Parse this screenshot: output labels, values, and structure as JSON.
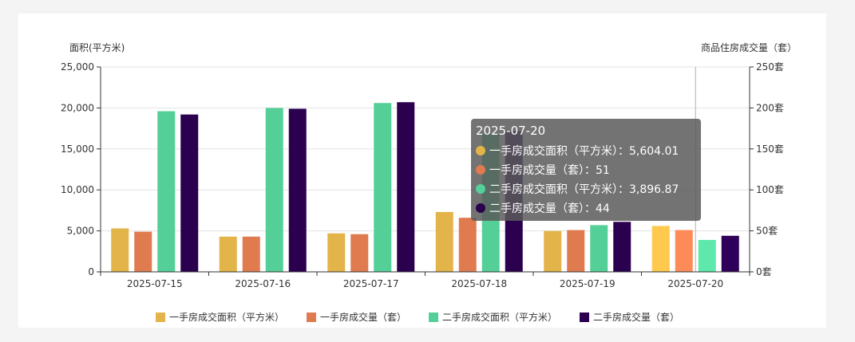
{
  "chart_data": {
    "type": "bar",
    "categories": [
      "2025-07-15",
      "2025-07-16",
      "2025-07-17",
      "2025-07-18",
      "2025-07-19",
      "2025-07-20"
    ],
    "left_axis_label": "面积(平方米)",
    "right_axis_label": "商品住房成交量（套）",
    "left_ylim": [
      0,
      25000
    ],
    "right_ylim": [
      0,
      250
    ],
    "left_ticks": [
      "0",
      "5,000",
      "10,000",
      "15,000",
      "20,000",
      "25,000"
    ],
    "right_ticks": [
      "0套",
      "50套",
      "100套",
      "150套",
      "200套",
      "250套"
    ],
    "series": [
      {
        "name": "一手房成交面积（平方米）",
        "axis": "left",
        "color": "#e3b449",
        "values": [
          5300,
          4300,
          4700,
          7300,
          5000,
          5604.01
        ]
      },
      {
        "name": "一手房成交量（套）",
        "axis": "right",
        "color": "#e07b4f",
        "values": [
          49,
          43,
          46,
          66,
          51,
          51
        ]
      },
      {
        "name": "二手房成交面积（平方米）",
        "axis": "left",
        "color": "#55cf98",
        "values": [
          19600,
          20000,
          20600,
          16800,
          5700,
          3896.87
        ]
      },
      {
        "name": "二手房成交量（套）",
        "axis": "right",
        "color": "#2a004f",
        "values": [
          192,
          199,
          207,
          172,
          61,
          44
        ]
      }
    ],
    "highlight_index": 5,
    "highlight_colors": [
      "#ffc94e",
      "#fd8b58",
      "#5ee8ab",
      "#2f0059"
    ],
    "grid": true,
    "legend_position": "bottom"
  },
  "tooltip": {
    "title": "2025-07-20",
    "rows": [
      {
        "label": "一手房成交面积（平方米）：5,604.01",
        "color": "#e3b449"
      },
      {
        "label": "一手房成交量（套）：51",
        "color": "#e07b4f"
      },
      {
        "label": "二手房成交面积（平方米）：3,896.87",
        "color": "#55cf98"
      },
      {
        "label": "二手房成交量（套）：44",
        "color": "#2a004f"
      }
    ]
  }
}
